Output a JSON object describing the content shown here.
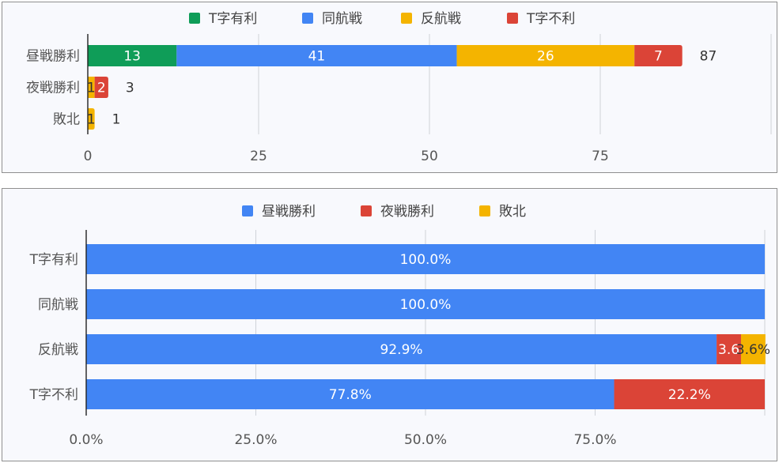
{
  "chart_data": [
    {
      "type": "bar",
      "orientation": "horizontal",
      "stacked": true,
      "categories": [
        "昼戦勝利",
        "夜戦勝利",
        "敗北"
      ],
      "series": [
        {
          "name": "T字有利",
          "color": "#0f9d58",
          "values": [
            13,
            0,
            0
          ]
        },
        {
          "name": "同航戦",
          "color": "#4285f4",
          "values": [
            41,
            0,
            0
          ]
        },
        {
          "name": "反航戦",
          "color": "#f4b400",
          "values": [
            26,
            1,
            1
          ]
        },
        {
          "name": "T字不利",
          "color": "#db4437",
          "values": [
            7,
            2,
            0
          ]
        }
      ],
      "totals": [
        "87",
        "3",
        "1"
      ],
      "x_ticks": [
        "0",
        "25",
        "50",
        "75"
      ],
      "xlim": [
        0,
        100
      ],
      "legend": "top",
      "grid": true
    },
    {
      "type": "bar",
      "orientation": "horizontal",
      "stacked": true,
      "percent": true,
      "categories": [
        "T字有利",
        "同航戦",
        "反航戦",
        "T字不利"
      ],
      "series": [
        {
          "name": "昼戦勝利",
          "color": "#4285f4",
          "values": [
            100,
            100,
            92.9,
            77.8
          ],
          "labels": [
            "100.0%",
            "100.0%",
            "92.9%",
            "77.8%"
          ]
        },
        {
          "name": "夜戦勝利",
          "color": "#db4437",
          "values": [
            0,
            0,
            3.6,
            22.2
          ],
          "labels": [
            "",
            "",
            "3.6",
            "22.2%"
          ]
        },
        {
          "name": "敗北",
          "color": "#f4b400",
          "values": [
            0,
            0,
            3.6,
            0
          ],
          "labels": [
            "",
            "",
            "3.6%",
            ""
          ]
        }
      ],
      "x_ticks": [
        "0.0%",
        "25.0%",
        "50.0%",
        "75.0%"
      ],
      "xlim": [
        0,
        100
      ],
      "legend": "top",
      "grid": true
    }
  ]
}
